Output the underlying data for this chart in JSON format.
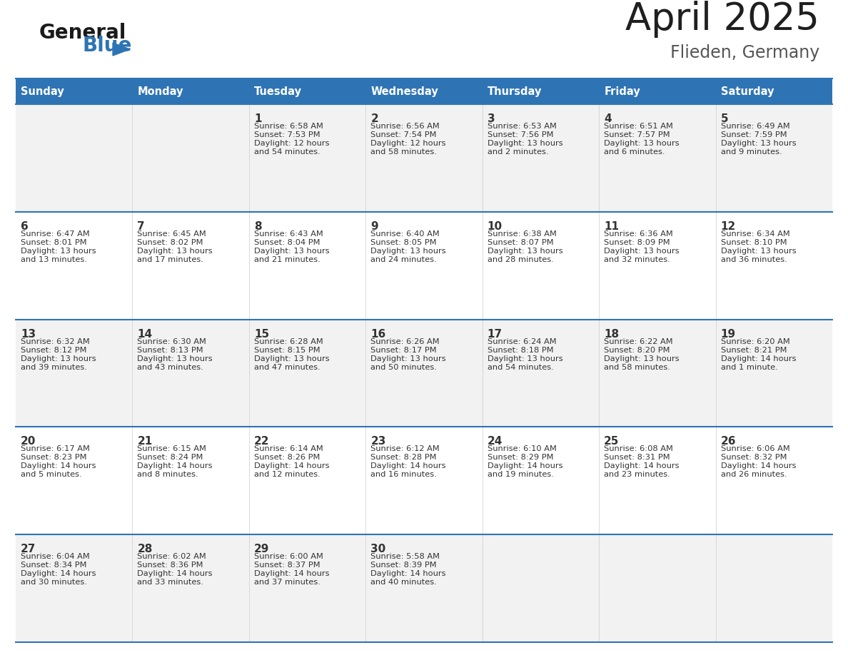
{
  "title": "April 2025",
  "subtitle": "Flieden, Germany",
  "header_color": "#2E74B5",
  "header_text_color": "#FFFFFF",
  "cell_bg_even": "#F2F2F2",
  "cell_bg_odd": "#FFFFFF",
  "day_names": [
    "Sunday",
    "Monday",
    "Tuesday",
    "Wednesday",
    "Thursday",
    "Friday",
    "Saturday"
  ],
  "title_color": "#1F1F1F",
  "subtitle_color": "#555555",
  "text_color": "#333333",
  "divider_color": "#2E74B5",
  "logo_general_color": "#1a1a1a",
  "logo_blue_color": "#2E74B5",
  "logo_triangle_color": "#2E74B5",
  "calendar": [
    [
      {
        "day": "",
        "sunrise": "",
        "sunset": "",
        "daylight": ""
      },
      {
        "day": "",
        "sunrise": "",
        "sunset": "",
        "daylight": ""
      },
      {
        "day": "1",
        "sunrise": "Sunrise: 6:58 AM",
        "sunset": "Sunset: 7:53 PM",
        "daylight": "Daylight: 12 hours\nand 54 minutes."
      },
      {
        "day": "2",
        "sunrise": "Sunrise: 6:56 AM",
        "sunset": "Sunset: 7:54 PM",
        "daylight": "Daylight: 12 hours\nand 58 minutes."
      },
      {
        "day": "3",
        "sunrise": "Sunrise: 6:53 AM",
        "sunset": "Sunset: 7:56 PM",
        "daylight": "Daylight: 13 hours\nand 2 minutes."
      },
      {
        "day": "4",
        "sunrise": "Sunrise: 6:51 AM",
        "sunset": "Sunset: 7:57 PM",
        "daylight": "Daylight: 13 hours\nand 6 minutes."
      },
      {
        "day": "5",
        "sunrise": "Sunrise: 6:49 AM",
        "sunset": "Sunset: 7:59 PM",
        "daylight": "Daylight: 13 hours\nand 9 minutes."
      }
    ],
    [
      {
        "day": "6",
        "sunrise": "Sunrise: 6:47 AM",
        "sunset": "Sunset: 8:01 PM",
        "daylight": "Daylight: 13 hours\nand 13 minutes."
      },
      {
        "day": "7",
        "sunrise": "Sunrise: 6:45 AM",
        "sunset": "Sunset: 8:02 PM",
        "daylight": "Daylight: 13 hours\nand 17 minutes."
      },
      {
        "day": "8",
        "sunrise": "Sunrise: 6:43 AM",
        "sunset": "Sunset: 8:04 PM",
        "daylight": "Daylight: 13 hours\nand 21 minutes."
      },
      {
        "day": "9",
        "sunrise": "Sunrise: 6:40 AM",
        "sunset": "Sunset: 8:05 PM",
        "daylight": "Daylight: 13 hours\nand 24 minutes."
      },
      {
        "day": "10",
        "sunrise": "Sunrise: 6:38 AM",
        "sunset": "Sunset: 8:07 PM",
        "daylight": "Daylight: 13 hours\nand 28 minutes."
      },
      {
        "day": "11",
        "sunrise": "Sunrise: 6:36 AM",
        "sunset": "Sunset: 8:09 PM",
        "daylight": "Daylight: 13 hours\nand 32 minutes."
      },
      {
        "day": "12",
        "sunrise": "Sunrise: 6:34 AM",
        "sunset": "Sunset: 8:10 PM",
        "daylight": "Daylight: 13 hours\nand 36 minutes."
      }
    ],
    [
      {
        "day": "13",
        "sunrise": "Sunrise: 6:32 AM",
        "sunset": "Sunset: 8:12 PM",
        "daylight": "Daylight: 13 hours\nand 39 minutes."
      },
      {
        "day": "14",
        "sunrise": "Sunrise: 6:30 AM",
        "sunset": "Sunset: 8:13 PM",
        "daylight": "Daylight: 13 hours\nand 43 minutes."
      },
      {
        "day": "15",
        "sunrise": "Sunrise: 6:28 AM",
        "sunset": "Sunset: 8:15 PM",
        "daylight": "Daylight: 13 hours\nand 47 minutes."
      },
      {
        "day": "16",
        "sunrise": "Sunrise: 6:26 AM",
        "sunset": "Sunset: 8:17 PM",
        "daylight": "Daylight: 13 hours\nand 50 minutes."
      },
      {
        "day": "17",
        "sunrise": "Sunrise: 6:24 AM",
        "sunset": "Sunset: 8:18 PM",
        "daylight": "Daylight: 13 hours\nand 54 minutes."
      },
      {
        "day": "18",
        "sunrise": "Sunrise: 6:22 AM",
        "sunset": "Sunset: 8:20 PM",
        "daylight": "Daylight: 13 hours\nand 58 minutes."
      },
      {
        "day": "19",
        "sunrise": "Sunrise: 6:20 AM",
        "sunset": "Sunset: 8:21 PM",
        "daylight": "Daylight: 14 hours\nand 1 minute."
      }
    ],
    [
      {
        "day": "20",
        "sunrise": "Sunrise: 6:17 AM",
        "sunset": "Sunset: 8:23 PM",
        "daylight": "Daylight: 14 hours\nand 5 minutes."
      },
      {
        "day": "21",
        "sunrise": "Sunrise: 6:15 AM",
        "sunset": "Sunset: 8:24 PM",
        "daylight": "Daylight: 14 hours\nand 8 minutes."
      },
      {
        "day": "22",
        "sunrise": "Sunrise: 6:14 AM",
        "sunset": "Sunset: 8:26 PM",
        "daylight": "Daylight: 14 hours\nand 12 minutes."
      },
      {
        "day": "23",
        "sunrise": "Sunrise: 6:12 AM",
        "sunset": "Sunset: 8:28 PM",
        "daylight": "Daylight: 14 hours\nand 16 minutes."
      },
      {
        "day": "24",
        "sunrise": "Sunrise: 6:10 AM",
        "sunset": "Sunset: 8:29 PM",
        "daylight": "Daylight: 14 hours\nand 19 minutes."
      },
      {
        "day": "25",
        "sunrise": "Sunrise: 6:08 AM",
        "sunset": "Sunset: 8:31 PM",
        "daylight": "Daylight: 14 hours\nand 23 minutes."
      },
      {
        "day": "26",
        "sunrise": "Sunrise: 6:06 AM",
        "sunset": "Sunset: 8:32 PM",
        "daylight": "Daylight: 14 hours\nand 26 minutes."
      }
    ],
    [
      {
        "day": "27",
        "sunrise": "Sunrise: 6:04 AM",
        "sunset": "Sunset: 8:34 PM",
        "daylight": "Daylight: 14 hours\nand 30 minutes."
      },
      {
        "day": "28",
        "sunrise": "Sunrise: 6:02 AM",
        "sunset": "Sunset: 8:36 PM",
        "daylight": "Daylight: 14 hours\nand 33 minutes."
      },
      {
        "day": "29",
        "sunrise": "Sunrise: 6:00 AM",
        "sunset": "Sunset: 8:37 PM",
        "daylight": "Daylight: 14 hours\nand 37 minutes."
      },
      {
        "day": "30",
        "sunrise": "Sunrise: 5:58 AM",
        "sunset": "Sunset: 8:39 PM",
        "daylight": "Daylight: 14 hours\nand 40 minutes."
      },
      {
        "day": "",
        "sunrise": "",
        "sunset": "",
        "daylight": ""
      },
      {
        "day": "",
        "sunrise": "",
        "sunset": "",
        "daylight": ""
      },
      {
        "day": "",
        "sunrise": "",
        "sunset": "",
        "daylight": ""
      }
    ]
  ]
}
